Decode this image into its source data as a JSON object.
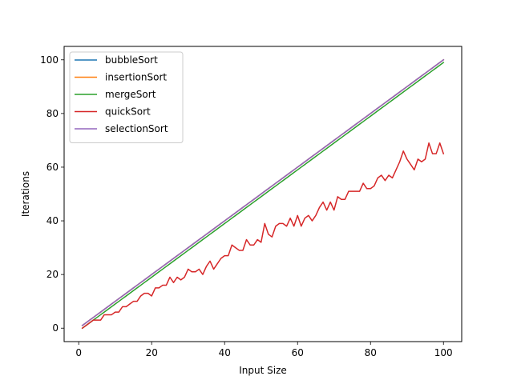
{
  "chart_data": {
    "type": "line",
    "title": "",
    "xlabel": "Input Size",
    "ylabel": "Iterations",
    "xlim": [
      -4,
      105
    ],
    "ylim": [
      -5,
      105
    ],
    "xticks": [
      0,
      20,
      40,
      60,
      80,
      100
    ],
    "yticks": [
      0,
      20,
      40,
      60,
      80,
      100
    ],
    "grid": false,
    "legend_position": "top-left",
    "series": [
      {
        "name": "bubbleSort",
        "color": "#1f77b4",
        "formula_desc": "linear",
        "x_start": 1,
        "x_end": 100,
        "y_start": 1,
        "y_end": 100
      },
      {
        "name": "insertionSort",
        "color": "#ff7f0e",
        "formula_desc": "linear",
        "x_start": 1,
        "x_end": 100,
        "y_start": 1,
        "y_end": 100
      },
      {
        "name": "mergeSort",
        "color": "#2ca02c",
        "formula_desc": "linear",
        "x_start": 1,
        "x_end": 100,
        "y_start": 0,
        "y_end": 99
      },
      {
        "name": "quickSort",
        "color": "#d62728",
        "x": [
          1,
          2,
          3,
          4,
          5,
          6,
          7,
          8,
          9,
          10,
          11,
          12,
          13,
          14,
          15,
          16,
          17,
          18,
          19,
          20,
          21,
          22,
          23,
          24,
          25,
          26,
          27,
          28,
          29,
          30,
          31,
          32,
          33,
          34,
          35,
          36,
          37,
          38,
          39,
          40,
          41,
          42,
          43,
          44,
          45,
          46,
          47,
          48,
          49,
          50,
          51,
          52,
          53,
          54,
          55,
          56,
          57,
          58,
          59,
          60,
          61,
          62,
          63,
          64,
          65,
          66,
          67,
          68,
          69,
          70,
          71,
          72,
          73,
          74,
          75,
          76,
          77,
          78,
          79,
          80,
          81,
          82,
          83,
          84,
          85,
          86,
          87,
          88,
          89,
          90,
          91,
          92,
          93,
          94,
          95,
          96,
          97,
          98,
          99,
          100
        ],
        "y": [
          0,
          1,
          2,
          3,
          3,
          3,
          5,
          5,
          5,
          6,
          6,
          8,
          8,
          9,
          10,
          10,
          12,
          13,
          13,
          12,
          15,
          15,
          16,
          16,
          19,
          17,
          19,
          18,
          19,
          22,
          21,
          21,
          22,
          20,
          23,
          25,
          22,
          24,
          26,
          27,
          27,
          31,
          30,
          29,
          29,
          33,
          31,
          31,
          33,
          32,
          39,
          35,
          34,
          38,
          39,
          39,
          38,
          41,
          38,
          42,
          38,
          41,
          42,
          40,
          42,
          45,
          47,
          44,
          47,
          44,
          49,
          48,
          48,
          51,
          51,
          51,
          51,
          54,
          52,
          52,
          53,
          56,
          57,
          55,
          57,
          56,
          59,
          62,
          66,
          63,
          61,
          59,
          63,
          62,
          63,
          69,
          65,
          65,
          69,
          65
        ]
      },
      {
        "name": "selectionSort",
        "color": "#9467bd",
        "formula_desc": "linear",
        "x_start": 1,
        "x_end": 100,
        "y_start": 1,
        "y_end": 100
      }
    ]
  }
}
